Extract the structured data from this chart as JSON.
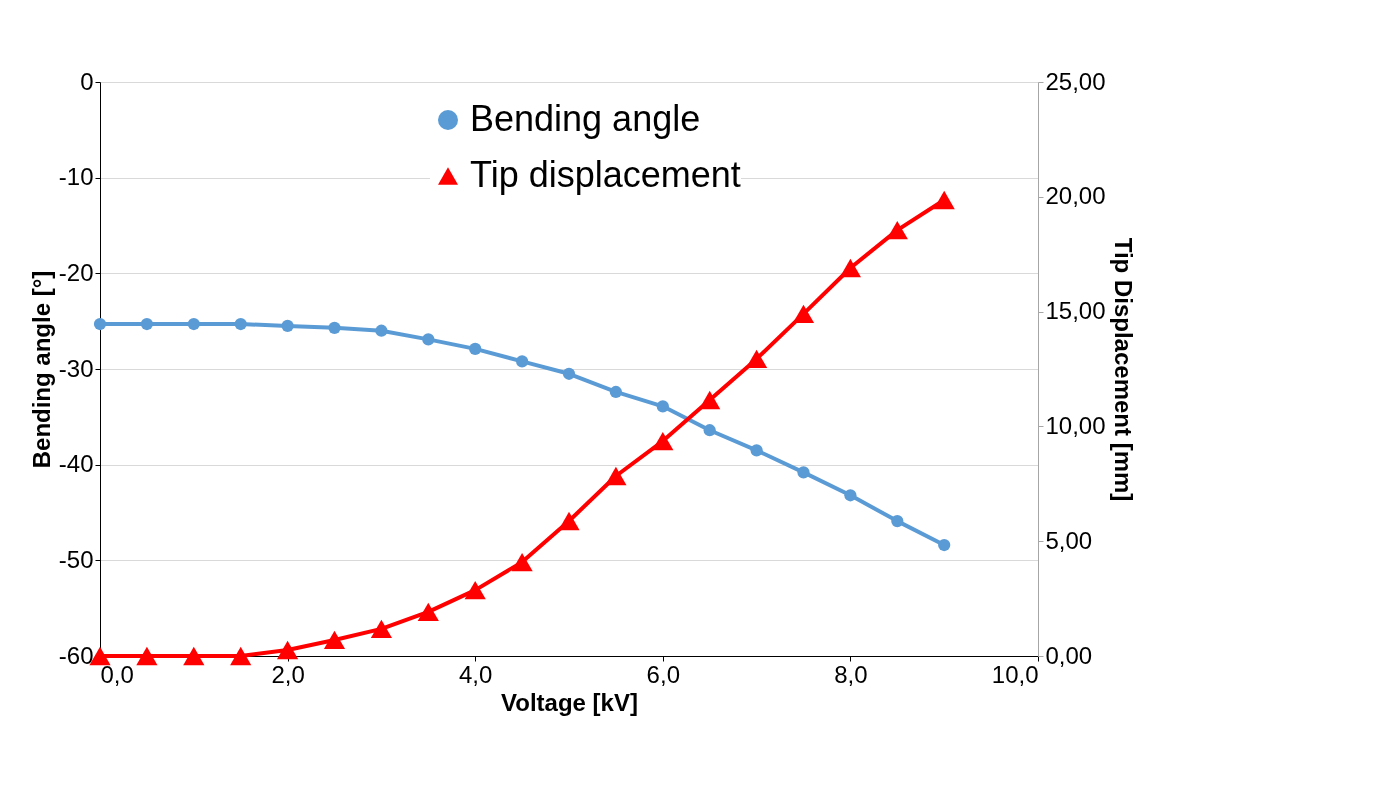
{
  "chart_data": {
    "type": "line",
    "xlabel": "Voltage [kV]",
    "ylabel": "Bending angle [°]",
    "y2label": "Tip Displacement [mm]",
    "x": [
      0,
      0.5,
      1,
      1.5,
      2,
      2.5,
      3,
      3.5,
      4,
      4.5,
      5,
      5.5,
      6,
      6.5,
      7,
      7.5,
      8,
      8.5,
      9
    ],
    "series": [
      {
        "name": "Bending angle",
        "color": "#5b9bd5",
        "marker": "circle",
        "values": [
          -25.3,
          -25.3,
          -25.3,
          -25.3,
          -25.5,
          -25.7,
          -26.0,
          -26.9,
          -27.9,
          -29.2,
          -30.5,
          -32.4,
          -33.9,
          -36.4,
          -38.5,
          -40.8,
          -43.2,
          -45.9,
          -48.4
        ]
      },
      {
        "name": "Tip displacement",
        "color": "#ff0000",
        "marker": "triangle",
        "axis": "y2",
        "values": [
          0,
          0,
          0,
          0,
          0.26,
          0.7,
          1.18,
          1.92,
          2.87,
          4.09,
          5.88,
          7.84,
          9.36,
          11.15,
          12.94,
          14.9,
          16.9,
          18.55,
          19.86
        ]
      }
    ],
    "xlim": [
      0,
      10
    ],
    "xticks": [
      {
        "value": 0,
        "label": "0,0"
      },
      {
        "value": 2,
        "label": "2,0"
      },
      {
        "value": 4,
        "label": "4,0"
      },
      {
        "value": 6,
        "label": "6,0"
      },
      {
        "value": 8,
        "label": "8,0"
      },
      {
        "value": 10,
        "label": "10,0"
      }
    ],
    "ylim": [
      -60,
      0
    ],
    "yticks": [
      -60,
      -50,
      -40,
      -30,
      -20,
      -10,
      0
    ],
    "y2lim": [
      0,
      25
    ],
    "y2ticks": [
      {
        "value": 0,
        "label": "0,00"
      },
      {
        "value": 5,
        "label": "5,00"
      },
      {
        "value": 10,
        "label": "10,00"
      },
      {
        "value": 15,
        "label": "15,00"
      },
      {
        "value": 20,
        "label": "20,00"
      },
      {
        "value": 25,
        "label": "25,00"
      }
    ],
    "grid": "y",
    "legend": "top",
    "line_style": "solid"
  }
}
